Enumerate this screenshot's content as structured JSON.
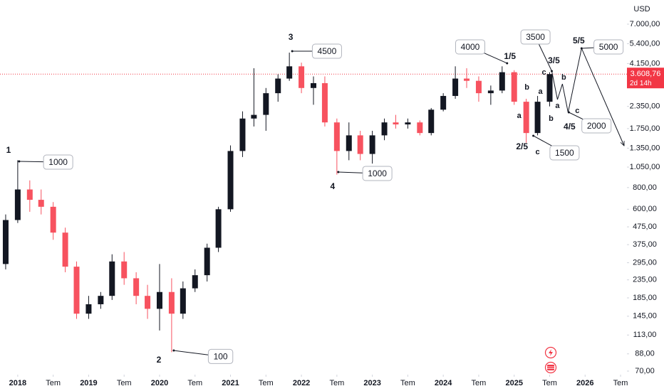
{
  "chart_data": {
    "type": "candlestick",
    "currency": "USD",
    "log_scale": true,
    "up_color": "#131722",
    "down_color": "#f7525f",
    "xlim": [
      2017.75,
      2026.59
    ],
    "ylim": [
      70,
      7000
    ],
    "xticks": [
      2018,
      {
        "value": 2018.5,
        "label": "Tem"
      },
      2019,
      {
        "value": 2019.5,
        "label": "Tem"
      },
      2020,
      {
        "value": 2020.5,
        "label": "Tem"
      },
      2021,
      {
        "value": 2021.5,
        "label": "Tem"
      },
      2022,
      {
        "value": 2022.5,
        "label": "Tem"
      },
      2023,
      {
        "value": 2023.5,
        "label": "Tem"
      },
      2024,
      {
        "value": 2024.5,
        "label": "Tem"
      },
      2025,
      {
        "value": 2025.5,
        "label": "Tem"
      },
      2026,
      {
        "value": 2026.5,
        "label": "Tem"
      }
    ],
    "yticks": [
      {
        "value": 7000,
        "label": "7.000,00"
      },
      {
        "value": 5400,
        "label": "5.400,00"
      },
      {
        "value": 4150,
        "label": "4.150,00"
      },
      {
        "value": 2350,
        "label": "2.350,00"
      },
      {
        "value": 1750,
        "label": "1.750,00"
      },
      {
        "value": 1350,
        "label": "1.350,00"
      },
      {
        "value": 1050,
        "label": "1.050,00"
      },
      {
        "value": 800,
        "label": "800,00"
      },
      {
        "value": 600,
        "label": "600,00"
      },
      {
        "value": 475,
        "label": "475,00"
      },
      {
        "value": 375,
        "label": "375,00"
      },
      {
        "value": 295,
        "label": "295,00"
      },
      {
        "value": 235,
        "label": "235,00"
      },
      {
        "value": 185,
        "label": "185,00"
      },
      {
        "value": 145,
        "label": "145,00"
      },
      {
        "value": 113,
        "label": "113,00"
      },
      {
        "value": 88,
        "label": "88,00"
      },
      {
        "value": 70,
        "label": "70,00"
      }
    ],
    "last_price": {
      "value": 3608.76,
      "label": "3.608,76",
      "countdown": "2d 14h",
      "color": "#f23645"
    },
    "x": [
      2017.83,
      2018.0,
      2018.17,
      2018.33,
      2018.5,
      2018.67,
      2018.83,
      2019.0,
      2019.17,
      2019.33,
      2019.5,
      2019.67,
      2019.83,
      2020.0,
      2020.17,
      2020.33,
      2020.5,
      2020.67,
      2020.83,
      2021.0,
      2021.17,
      2021.33,
      2021.5,
      2021.67,
      2021.83,
      2022.0,
      2022.17,
      2022.33,
      2022.5,
      2022.67,
      2022.83,
      2023.0,
      2023.17,
      2023.33,
      2023.5,
      2023.67,
      2023.83,
      2024.0,
      2024.17,
      2024.33,
      2024.5,
      2024.67,
      2024.83,
      2025.0,
      2025.17,
      2025.33,
      2025.5
    ],
    "open": [
      290,
      520,
      780,
      680,
      620,
      440,
      280,
      150,
      170,
      190,
      300,
      240,
      190,
      160,
      200,
      150,
      210,
      250,
      360,
      600,
      1300,
      2000,
      2100,
      2800,
      3400,
      4000,
      3000,
      3200,
      1900,
      1300,
      1600,
      1250,
      1600,
      1900,
      1850,
      1900,
      1650,
      2250,
      2700,
      3400,
      3300,
      2800,
      2900,
      3700,
      2500,
      1650,
      2500
    ],
    "high": [
      560,
      1150,
      880,
      780,
      660,
      470,
      300,
      190,
      200,
      330,
      340,
      260,
      220,
      290,
      240,
      230,
      270,
      380,
      620,
      1400,
      2200,
      3900,
      3000,
      3600,
      4800,
      4200,
      3500,
      3500,
      2000,
      1900,
      1700,
      1700,
      2000,
      2100,
      2000,
      1950,
      2300,
      2800,
      4000,
      3900,
      3500,
      3100,
      4000,
      3800,
      2600,
      2700,
      3700
    ],
    "low": [
      270,
      500,
      580,
      560,
      400,
      260,
      140,
      140,
      160,
      180,
      220,
      170,
      140,
      120,
      90,
      140,
      200,
      230,
      340,
      580,
      1200,
      1800,
      1700,
      2500,
      3300,
      2800,
      2400,
      1800,
      950,
      1150,
      1150,
      1100,
      1500,
      1750,
      1750,
      1600,
      1600,
      2200,
      2600,
      3000,
      2500,
      2400,
      2800,
      2400,
      1450,
      1600,
      2350
    ],
    "close": [
      520,
      780,
      680,
      620,
      440,
      280,
      150,
      170,
      190,
      300,
      240,
      190,
      160,
      200,
      150,
      210,
      250,
      360,
      600,
      1300,
      2000,
      2100,
      2800,
      3400,
      4000,
      3000,
      3200,
      1900,
      1300,
      1600,
      1250,
      1600,
      1900,
      1850,
      1900,
      1650,
      2250,
      2700,
      3400,
      3300,
      2800,
      2900,
      3700,
      2500,
      1650,
      2500,
      3608.76
    ],
    "projection": {
      "x": [
        2025.53,
        2025.61,
        2025.68,
        2025.76,
        2025.95,
        2026.55
      ],
      "y": [
        3755,
        2575,
        3167,
        2172,
        5080,
        1394
      ]
    },
    "wave_labels": [
      {
        "text": "1",
        "x": 2017.87,
        "y": 1305
      },
      {
        "text": "2",
        "x": 2019.99,
        "y": 80.6
      },
      {
        "text": "3",
        "x": 2021.85,
        "y": 5851
      },
      {
        "text": "4",
        "x": 2022.44,
        "y": 806
      },
      {
        "text": "1/5",
        "x": 2024.94,
        "y": 4534
      },
      {
        "text": "2/5",
        "x": 2025.11,
        "y": 1368
      },
      {
        "text": "3/5",
        "x": 2025.56,
        "y": 4284
      },
      {
        "text": "4/5",
        "x": 2025.78,
        "y": 1781
      },
      {
        "text": "5/5",
        "x": 2025.91,
        "y": 5582
      }
    ],
    "sub_labels": [
      {
        "text": "a",
        "x": 2025.07,
        "y": 2072
      },
      {
        "text": "b",
        "x": 2025.18,
        "y": 3021
      },
      {
        "text": "c",
        "x": 2025.33,
        "y": 1280
      },
      {
        "text": "a",
        "x": 2025.37,
        "y": 2856
      },
      {
        "text": "c",
        "x": 2025.42,
        "y": 3685
      },
      {
        "text": "b",
        "x": 2025.52,
        "y": 1995
      },
      {
        "text": "a",
        "x": 2025.61,
        "y": 2366
      },
      {
        "text": "b",
        "x": 2025.7,
        "y": 3449
      },
      {
        "text": "c",
        "x": 2025.89,
        "y": 2213
      }
    ],
    "callouts": [
      {
        "text": "1000",
        "x": 2018.02,
        "y": 1133,
        "box_x": 2018.57,
        "box_y": 1122
      },
      {
        "text": "100",
        "x": 2020.2,
        "y": 92,
        "box_x": 2020.86,
        "box_y": 85
      },
      {
        "text": "4500",
        "x": 2021.87,
        "y": 4890,
        "box_x": 2022.36,
        "box_y": 4890
      },
      {
        "text": "1000",
        "x": 2022.52,
        "y": 983,
        "box_x": 2023.07,
        "box_y": 965
      },
      {
        "text": "4000",
        "x": 2024.9,
        "y": 4167,
        "box_x": 2024.38,
        "box_y": 5177
      },
      {
        "text": "1500",
        "x": 2025.27,
        "y": 1591,
        "box_x": 2025.71,
        "box_y": 1269
      },
      {
        "text": "3500",
        "x": 2025.53,
        "y": 3755,
        "box_x": 2025.3,
        "box_y": 5906
      },
      {
        "text": "2000",
        "x": 2025.77,
        "y": 2172,
        "box_x": 2026.16,
        "box_y": 1816
      },
      {
        "text": "5000",
        "x": 2025.95,
        "y": 5080,
        "box_x": 2026.33,
        "box_y": 5177
      }
    ]
  }
}
